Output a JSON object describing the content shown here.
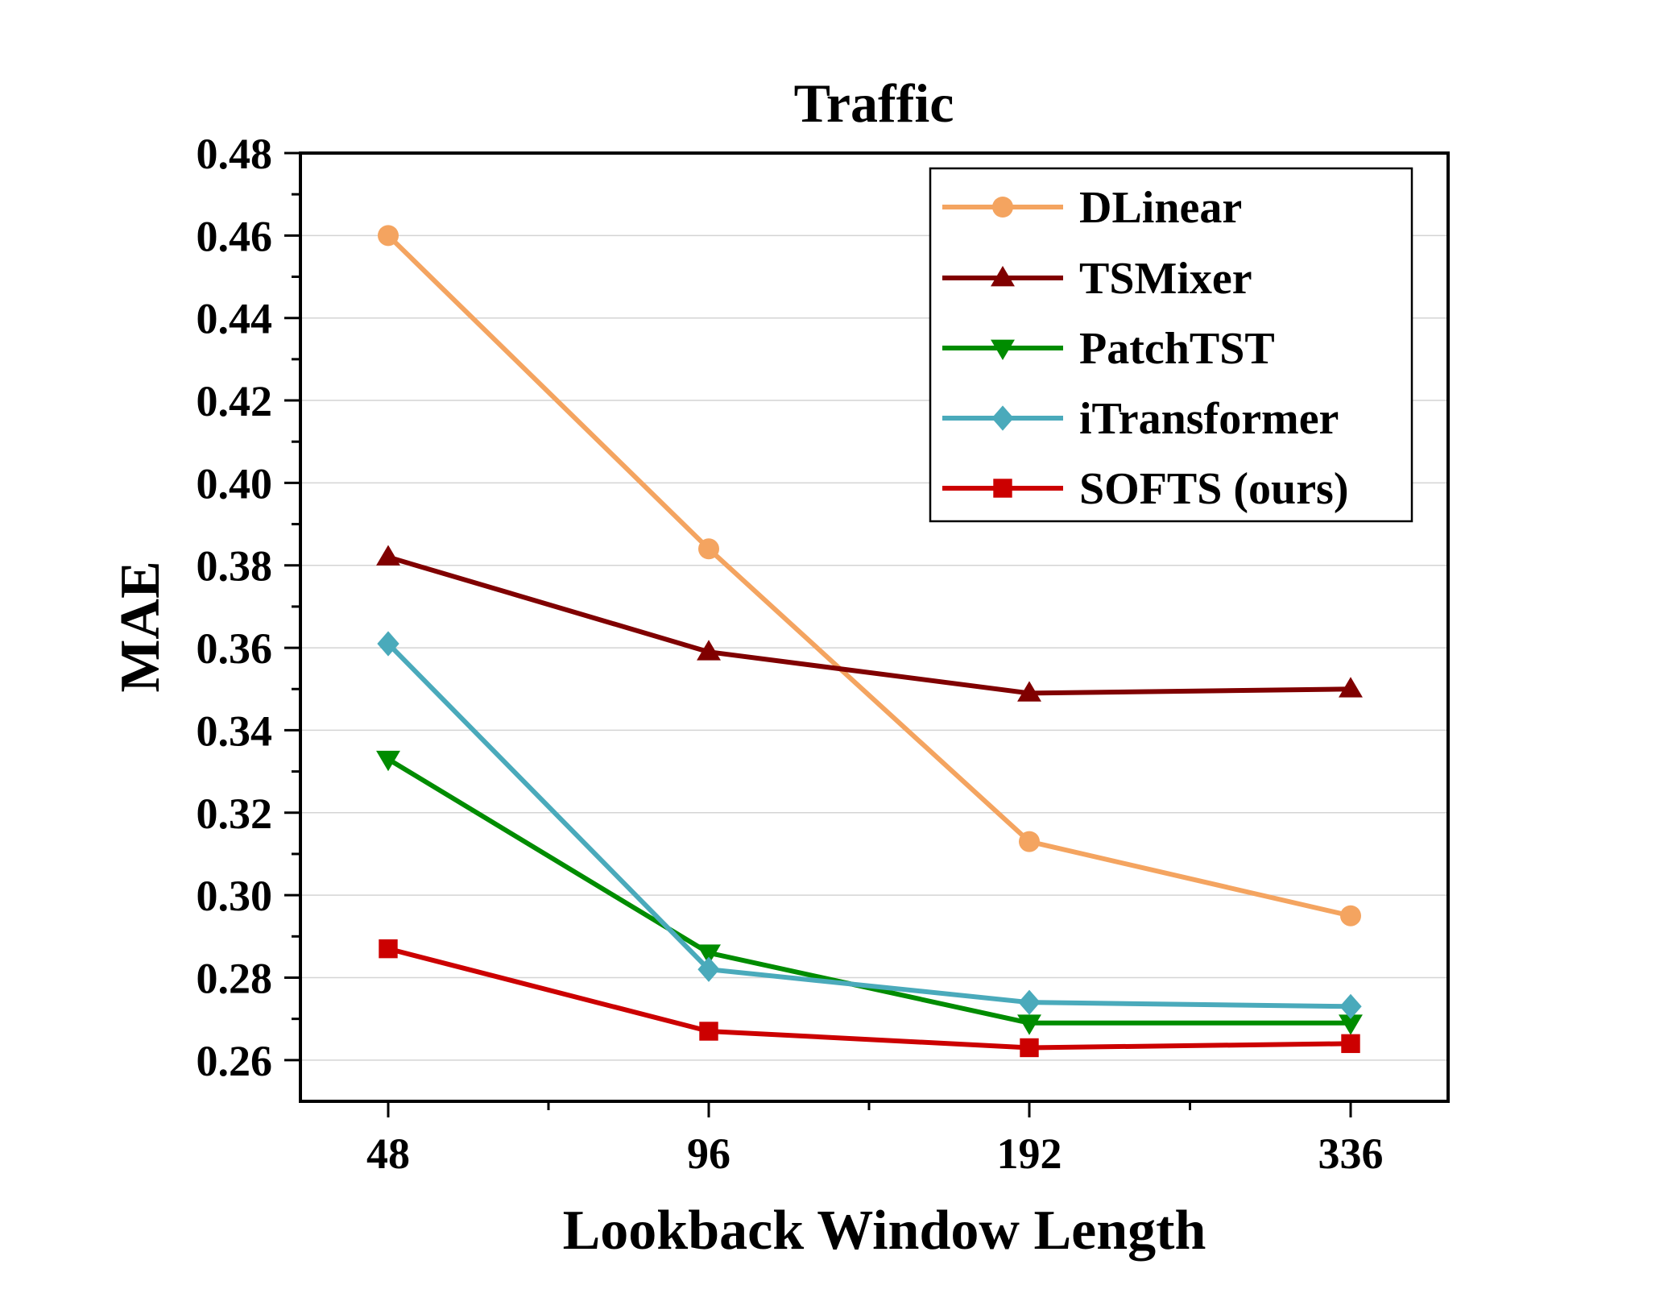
{
  "chart_data": {
    "type": "line",
    "title": "Traffic",
    "xlabel": "Lookback Window Length",
    "ylabel": "MAE",
    "categories": [
      "48",
      "96",
      "192",
      "336"
    ],
    "ylim": [
      0.25,
      0.48
    ],
    "yticks": [
      0.26,
      0.28,
      0.3,
      0.32,
      0.34,
      0.36,
      0.38,
      0.4,
      0.42,
      0.44,
      0.46,
      0.48
    ],
    "ytick_labels": [
      "0.26",
      "0.28",
      "0.30",
      "0.32",
      "0.34",
      "0.36",
      "0.38",
      "0.40",
      "0.42",
      "0.44",
      "0.46",
      "0.48"
    ],
    "grid": true,
    "legend_position": "top-right",
    "series": [
      {
        "name": "DLinear",
        "color": "#f4a460",
        "marker": "circle",
        "values": [
          0.46,
          0.384,
          0.313,
          0.295
        ]
      },
      {
        "name": "TSMixer",
        "color": "#800000",
        "marker": "triangle-up",
        "values": [
          0.382,
          0.359,
          0.349,
          0.35
        ]
      },
      {
        "name": "PatchTST",
        "color": "#008c00",
        "marker": "triangle-down",
        "values": [
          0.333,
          0.286,
          0.269,
          0.269
        ]
      },
      {
        "name": "iTransformer",
        "color": "#4aaabb",
        "marker": "diamond",
        "values": [
          0.361,
          0.282,
          0.274,
          0.273
        ]
      },
      {
        "name": "SOFTS (ours)",
        "color": "#cc0000",
        "marker": "square",
        "values": [
          0.287,
          0.267,
          0.263,
          0.264
        ]
      }
    ]
  }
}
